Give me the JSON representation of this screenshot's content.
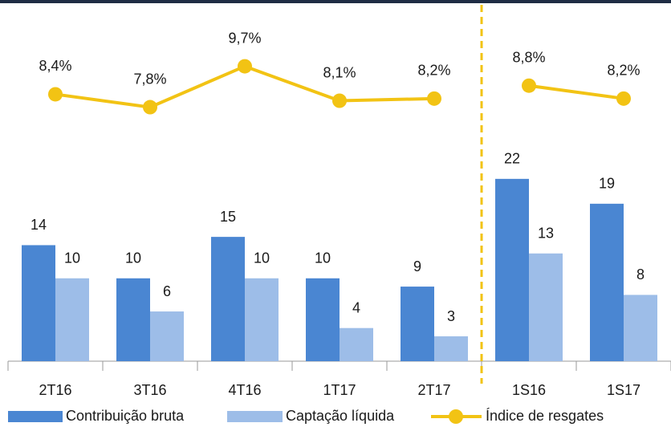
{
  "chart_data": {
    "type": "bar_line",
    "categories": [
      "2T16",
      "3T16",
      "4T16",
      "1T17",
      "2T17",
      "1S16",
      "1S17"
    ],
    "series": [
      {
        "name": "Contribuição bruta",
        "color": "#4a86d2",
        "values": [
          14,
          10,
          15,
          10,
          9,
          22,
          19
        ]
      },
      {
        "name": "Captação líquida",
        "color": "#9dbde8",
        "values": [
          10,
          6,
          10,
          4,
          3,
          13,
          8
        ]
      },
      {
        "name": "Índice de resgates",
        "color": "#f2c314",
        "axis": "y2",
        "values": [
          8.4,
          7.8,
          9.7,
          8.1,
          8.2,
          8.8,
          8.2
        ],
        "value_labels": [
          "8,4%",
          "7,8%",
          "9,7%",
          "8,1%",
          "8,2%",
          "8,8%",
          "8,2%"
        ]
      }
    ],
    "ylim": [
      0,
      40
    ],
    "y2lim": [
      -4,
      11.4
    ],
    "divider_after": 4,
    "divider_color": "#f2c314",
    "legend": "bottom"
  }
}
